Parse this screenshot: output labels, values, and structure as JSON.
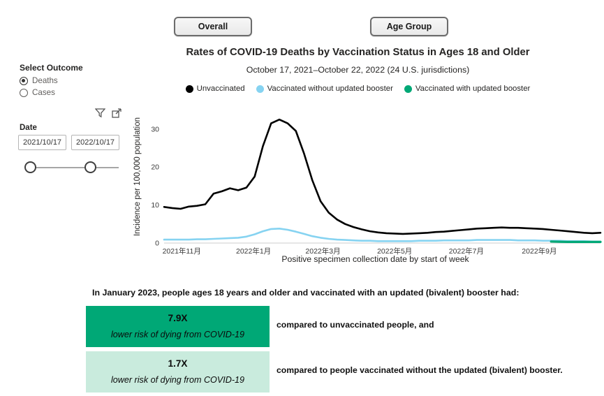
{
  "buttons": {
    "overall": "Overall",
    "age_group": "Age Group"
  },
  "header": {
    "title": "Rates of COVID-19 Deaths by Vaccination Status in Ages 18 and Older",
    "subtitle": "October 17, 2021–October 22, 2022 (24 U.S. jurisdictions)"
  },
  "sidebar": {
    "outcome_label": "Select Outcome",
    "options": [
      {
        "label": "Deaths",
        "selected": true
      },
      {
        "label": "Cases",
        "selected": false
      }
    ],
    "icons": [
      "filter-icon",
      "popout-icon"
    ],
    "date_label": "Date",
    "date_start": "2021/10/17",
    "date_end": "2022/10/17"
  },
  "chart_data": {
    "type": "line",
    "title": "Rates of COVID-19 Deaths by Vaccination Status in Ages 18 and Older",
    "xlabel": "Positive specimen collection date by start of week",
    "ylabel": "Incidence per 100,000 population",
    "ylim": [
      0,
      34
    ],
    "y_ticks": [
      0,
      10,
      20,
      30
    ],
    "x_domain_weeks": [
      0,
      53
    ],
    "x_tick_weeks": [
      2.14,
      10.86,
      19.29,
      28.0,
      36.71,
      45.57
    ],
    "x_tick_labels": [
      "2021年11月",
      "2022年1月",
      "2022年3月",
      "2022年5月",
      "2022年7月",
      "2022年9月"
    ],
    "grid": false,
    "legend_position": "top",
    "series": [
      {
        "name": "Unvaccinated",
        "color": "#000000",
        "stroke_width": 2.6,
        "values": [
          9.5,
          9.2,
          9.0,
          9.6,
          9.8,
          10.2,
          13.0,
          13.6,
          14.4,
          13.9,
          14.6,
          17.5,
          25.5,
          31.5,
          32.5,
          31.5,
          29.5,
          23.5,
          16.5,
          11.0,
          8.0,
          6.2,
          5.0,
          4.2,
          3.6,
          3.1,
          2.8,
          2.6,
          2.5,
          2.4,
          2.5,
          2.6,
          2.7,
          2.9,
          3.0,
          3.2,
          3.4,
          3.6,
          3.8,
          3.9,
          4.0,
          4.1,
          4.0,
          4.0,
          3.9,
          3.8,
          3.7,
          3.5,
          3.3,
          3.1,
          2.9,
          2.7,
          2.6,
          2.7
        ]
      },
      {
        "name": "Vaccinated without updated booster",
        "color": "#86d3f1",
        "stroke_width": 2.6,
        "values": [
          0.9,
          0.9,
          0.9,
          0.9,
          1.0,
          1.0,
          1.1,
          1.2,
          1.3,
          1.4,
          1.7,
          2.3,
          3.1,
          3.7,
          3.8,
          3.5,
          3.0,
          2.4,
          1.8,
          1.4,
          1.1,
          0.9,
          0.8,
          0.7,
          0.6,
          0.6,
          0.5,
          0.5,
          0.5,
          0.5,
          0.5,
          0.6,
          0.6,
          0.6,
          0.7,
          0.7,
          0.7,
          0.7,
          0.8,
          0.8,
          0.8,
          0.8,
          0.8,
          0.7,
          0.7,
          0.7,
          0.6,
          0.6,
          0.6,
          0.5,
          0.5,
          0.5,
          0.4,
          0.4
        ]
      },
      {
        "name": "Vaccinated with updated booster",
        "color": "#00a876",
        "stroke_width": 3.2,
        "values": [
          null,
          null,
          null,
          null,
          null,
          null,
          null,
          null,
          null,
          null,
          null,
          null,
          null,
          null,
          null,
          null,
          null,
          null,
          null,
          null,
          null,
          null,
          null,
          null,
          null,
          null,
          null,
          null,
          null,
          null,
          null,
          null,
          null,
          null,
          null,
          null,
          null,
          null,
          null,
          null,
          null,
          null,
          null,
          null,
          null,
          null,
          null,
          0.4,
          0.35,
          0.3,
          0.3,
          0.3,
          0.3,
          0.3
        ]
      }
    ]
  },
  "callout": {
    "intro": "In January 2023, people ages 18 years and older and vaccinated with an updated (bivalent) booster had:",
    "cards": [
      {
        "value": "7.9X",
        "caption": "lower risk of dying from COVID-19",
        "note": "compared to unvaccinated people, and",
        "bg": "#00a876"
      },
      {
        "value": "1.7X",
        "caption": "lower risk of dying from COVID-19",
        "note": "compared to people vaccinated without the updated (bivalent) booster.",
        "bg": "#c9ebdd"
      }
    ]
  }
}
